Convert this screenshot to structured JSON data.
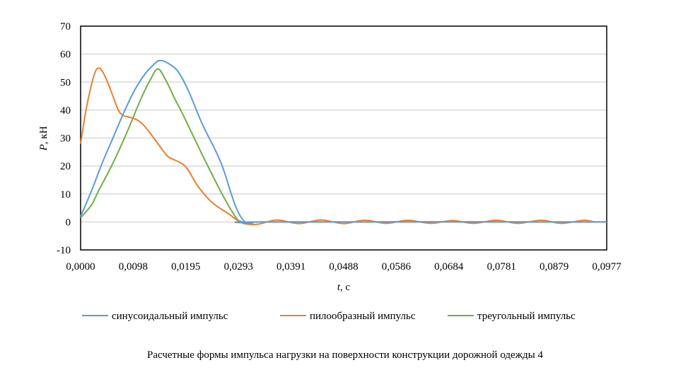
{
  "chart_data": {
    "type": "line",
    "title": "",
    "xlabel_var": "t",
    "xlabel_unit": ", с",
    "ylabel_var": "P",
    "ylabel_unit": ", кН",
    "xlim": [
      0,
      0.0977
    ],
    "ylim": [
      -10,
      70
    ],
    "xticks": [
      "0,0000",
      "0,0098",
      "0,0195",
      "0,0293",
      "0,0391",
      "0,0488",
      "0,0586",
      "0,0684",
      "0,0781",
      "0,0879",
      "0,0977"
    ],
    "xtick_values": [
      0,
      0.00977,
      0.01954,
      0.02931,
      0.03908,
      0.04885,
      0.05862,
      0.06839,
      0.07816,
      0.08793,
      0.0977
    ],
    "yticks": [
      -10,
      0,
      10,
      20,
      30,
      40,
      50,
      60,
      70
    ],
    "grid": "horizontal",
    "legend_position": "bottom",
    "caption": "Расчетные формы импульса нагрузки на поверхности конструкции дорожной одежды 4",
    "series": [
      {
        "name": "синусоидальный импульс",
        "color": "#5b9bd5",
        "x": [
          0,
          0.002,
          0.004,
          0.006,
          0.008,
          0.01,
          0.012,
          0.014,
          0.0148,
          0.016,
          0.018,
          0.02,
          0.0226,
          0.026,
          0.0287,
          0.0305,
          0.032,
          0.034,
          0.098
        ],
        "y": [
          2,
          11,
          21,
          30,
          39,
          47,
          53,
          57,
          57.7,
          57,
          54,
          47,
          35,
          21.5,
          6,
          0,
          -0.3,
          0,
          0
        ]
      },
      {
        "name": "пилообразный импульс",
        "color": "#ed7d31",
        "x": [
          0,
          0.001,
          0.002,
          0.0028,
          0.0034,
          0.004,
          0.005,
          0.006,
          0.007,
          0.008,
          0.0099,
          0.0115,
          0.0136,
          0.0155,
          0.0165,
          0.0194,
          0.0217,
          0.0244,
          0.0274,
          0.0296,
          0.031,
          0.033,
          0.0365,
          0.0405,
          0.0447,
          0.0488,
          0.0527,
          0.0568,
          0.0608,
          0.065,
          0.069,
          0.073,
          0.0772,
          0.0812,
          0.0855,
          0.0893,
          0.0935,
          0.0955,
          0.0977
        ],
        "y": [
          28,
          40,
          49,
          54,
          55,
          54,
          50,
          45,
          40,
          38,
          37,
          35,
          30,
          25,
          23,
          20,
          13,
          7,
          3,
          0,
          -0.8,
          -0.8,
          0.7,
          -0.6,
          0.7,
          -0.6,
          0.6,
          -0.5,
          0.6,
          -0.5,
          0.5,
          -0.5,
          0.6,
          -0.5,
          0.6,
          -0.5,
          0.6,
          0,
          0
        ]
      },
      {
        "name": "треугольный импульс",
        "color": "#70ad47",
        "x": [
          0,
          0.002,
          0.0033,
          0.006,
          0.0086,
          0.0112,
          0.013,
          0.0144,
          0.016,
          0.0175,
          0.0191,
          0.0226,
          0.026,
          0.0287,
          0.03,
          0.032,
          0.034,
          0.098
        ],
        "y": [
          1.5,
          6,
          11,
          21,
          32,
          44,
          51,
          54.7,
          50,
          44,
          38,
          24,
          11,
          2,
          0,
          -0.3,
          0,
          0
        ]
      }
    ]
  }
}
